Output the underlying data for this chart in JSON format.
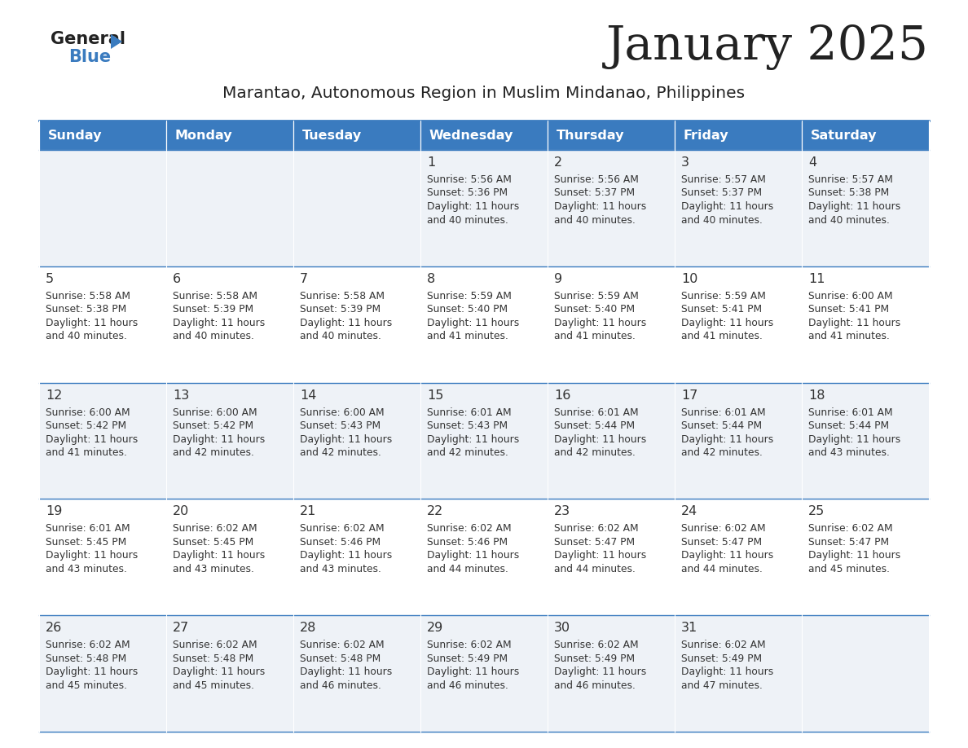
{
  "title": "January 2025",
  "subtitle": "Marantao, Autonomous Region in Muslim Mindanao, Philippines",
  "days_of_week": [
    "Sunday",
    "Monday",
    "Tuesday",
    "Wednesday",
    "Thursday",
    "Friday",
    "Saturday"
  ],
  "header_bg": "#3a7bbf",
  "header_text": "#ffffff",
  "row_bg_even": "#eef2f7",
  "row_bg_odd": "#ffffff",
  "border_color": "#3a7bbf",
  "cell_text_color": "#333333",
  "title_color": "#222222",
  "subtitle_color": "#222222",
  "calendar": [
    [
      null,
      null,
      null,
      {
        "day": 1,
        "sunrise": "5:56 AM",
        "sunset": "5:36 PM",
        "daylight": "11 hours and 40 minutes"
      },
      {
        "day": 2,
        "sunrise": "5:56 AM",
        "sunset": "5:37 PM",
        "daylight": "11 hours and 40 minutes"
      },
      {
        "day": 3,
        "sunrise": "5:57 AM",
        "sunset": "5:37 PM",
        "daylight": "11 hours and 40 minutes"
      },
      {
        "day": 4,
        "sunrise": "5:57 AM",
        "sunset": "5:38 PM",
        "daylight": "11 hours and 40 minutes"
      }
    ],
    [
      {
        "day": 5,
        "sunrise": "5:58 AM",
        "sunset": "5:38 PM",
        "daylight": "11 hours and 40 minutes"
      },
      {
        "day": 6,
        "sunrise": "5:58 AM",
        "sunset": "5:39 PM",
        "daylight": "11 hours and 40 minutes"
      },
      {
        "day": 7,
        "sunrise": "5:58 AM",
        "sunset": "5:39 PM",
        "daylight": "11 hours and 40 minutes"
      },
      {
        "day": 8,
        "sunrise": "5:59 AM",
        "sunset": "5:40 PM",
        "daylight": "11 hours and 41 minutes"
      },
      {
        "day": 9,
        "sunrise": "5:59 AM",
        "sunset": "5:40 PM",
        "daylight": "11 hours and 41 minutes"
      },
      {
        "day": 10,
        "sunrise": "5:59 AM",
        "sunset": "5:41 PM",
        "daylight": "11 hours and 41 minutes"
      },
      {
        "day": 11,
        "sunrise": "6:00 AM",
        "sunset": "5:41 PM",
        "daylight": "11 hours and 41 minutes"
      }
    ],
    [
      {
        "day": 12,
        "sunrise": "6:00 AM",
        "sunset": "5:42 PM",
        "daylight": "11 hours and 41 minutes"
      },
      {
        "day": 13,
        "sunrise": "6:00 AM",
        "sunset": "5:42 PM",
        "daylight": "11 hours and 42 minutes"
      },
      {
        "day": 14,
        "sunrise": "6:00 AM",
        "sunset": "5:43 PM",
        "daylight": "11 hours and 42 minutes"
      },
      {
        "day": 15,
        "sunrise": "6:01 AM",
        "sunset": "5:43 PM",
        "daylight": "11 hours and 42 minutes"
      },
      {
        "day": 16,
        "sunrise": "6:01 AM",
        "sunset": "5:44 PM",
        "daylight": "11 hours and 42 minutes"
      },
      {
        "day": 17,
        "sunrise": "6:01 AM",
        "sunset": "5:44 PM",
        "daylight": "11 hours and 42 minutes"
      },
      {
        "day": 18,
        "sunrise": "6:01 AM",
        "sunset": "5:44 PM",
        "daylight": "11 hours and 43 minutes"
      }
    ],
    [
      {
        "day": 19,
        "sunrise": "6:01 AM",
        "sunset": "5:45 PM",
        "daylight": "11 hours and 43 minutes"
      },
      {
        "day": 20,
        "sunrise": "6:02 AM",
        "sunset": "5:45 PM",
        "daylight": "11 hours and 43 minutes"
      },
      {
        "day": 21,
        "sunrise": "6:02 AM",
        "sunset": "5:46 PM",
        "daylight": "11 hours and 43 minutes"
      },
      {
        "day": 22,
        "sunrise": "6:02 AM",
        "sunset": "5:46 PM",
        "daylight": "11 hours and 44 minutes"
      },
      {
        "day": 23,
        "sunrise": "6:02 AM",
        "sunset": "5:47 PM",
        "daylight": "11 hours and 44 minutes"
      },
      {
        "day": 24,
        "sunrise": "6:02 AM",
        "sunset": "5:47 PM",
        "daylight": "11 hours and 44 minutes"
      },
      {
        "day": 25,
        "sunrise": "6:02 AM",
        "sunset": "5:47 PM",
        "daylight": "11 hours and 45 minutes"
      }
    ],
    [
      {
        "day": 26,
        "sunrise": "6:02 AM",
        "sunset": "5:48 PM",
        "daylight": "11 hours and 45 minutes"
      },
      {
        "day": 27,
        "sunrise": "6:02 AM",
        "sunset": "5:48 PM",
        "daylight": "11 hours and 45 minutes"
      },
      {
        "day": 28,
        "sunrise": "6:02 AM",
        "sunset": "5:48 PM",
        "daylight": "11 hours and 46 minutes"
      },
      {
        "day": 29,
        "sunrise": "6:02 AM",
        "sunset": "5:49 PM",
        "daylight": "11 hours and 46 minutes"
      },
      {
        "day": 30,
        "sunrise": "6:02 AM",
        "sunset": "5:49 PM",
        "daylight": "11 hours and 46 minutes"
      },
      {
        "day": 31,
        "sunrise": "6:02 AM",
        "sunset": "5:49 PM",
        "daylight": "11 hours and 47 minutes"
      },
      null
    ]
  ]
}
